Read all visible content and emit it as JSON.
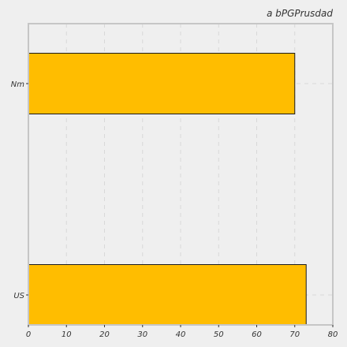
{
  "chart_data": {
    "type": "bar",
    "orientation": "horizontal",
    "title": "a bPGPrusdad",
    "xlabel": "",
    "ylabel": "",
    "categories": [
      "Nm",
      "US"
    ],
    "values": [
      70,
      73
    ],
    "xlim": [
      0,
      80
    ],
    "xticks": [
      0,
      10,
      20,
      30,
      40,
      50,
      60,
      70,
      80
    ],
    "grid": true,
    "legend": "none"
  },
  "colors": {
    "bar_fill": "#ffbd00",
    "bar_stroke": "#1a1a1a",
    "background": "#efefef",
    "grid": "#d8d8d8",
    "frame": "#c6c6c6"
  }
}
